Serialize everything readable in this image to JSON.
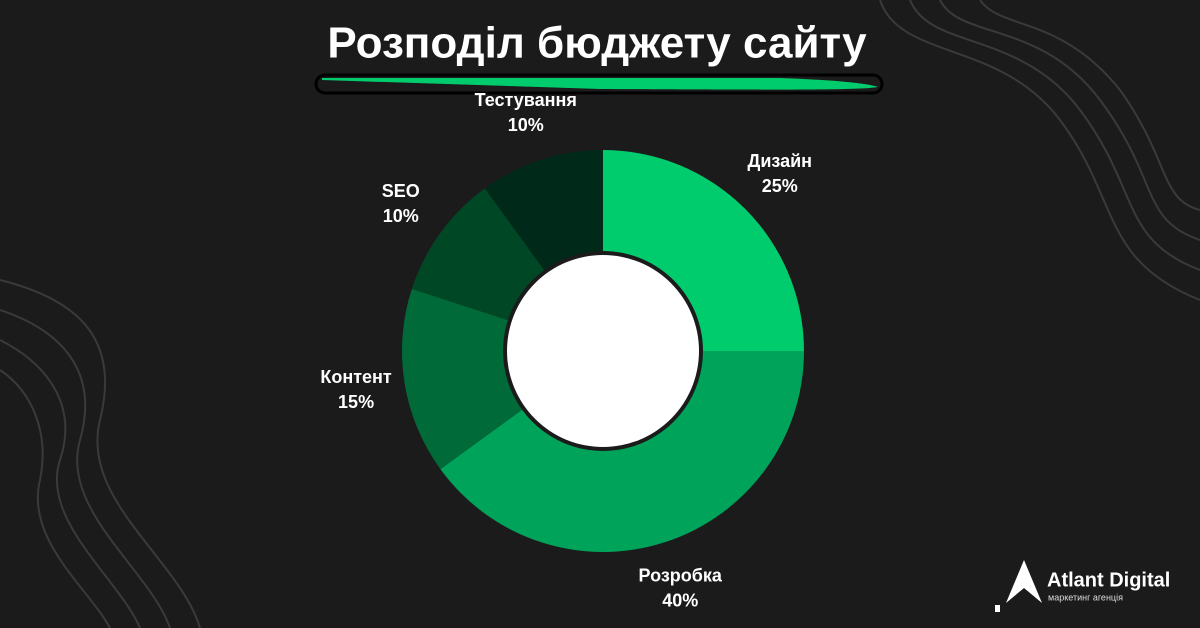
{
  "chart_data": {
    "type": "donut",
    "title": "Розподіл бюджету сайту",
    "categories": [
      "Дизайн",
      "Розробка",
      "Контент",
      "SEO",
      "Тестування"
    ],
    "values": [
      25,
      40,
      15,
      10,
      10
    ],
    "value_labels": [
      "25%",
      "40%",
      "15%",
      "10%",
      "10%"
    ],
    "colors": [
      "#00cc6e",
      "#00a35a",
      "#006b38",
      "#004726",
      "#00291a"
    ]
  },
  "brand": {
    "name": "Atlant Digital",
    "tagline": "маркетинг агенція"
  }
}
